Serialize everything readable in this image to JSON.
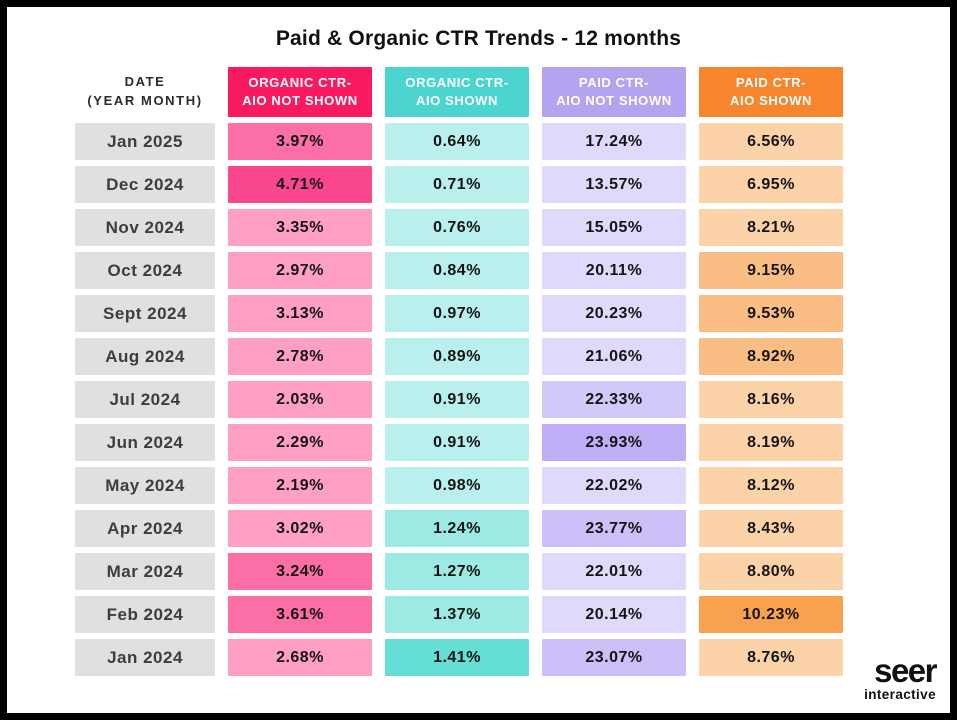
{
  "title": "Paid & Organic CTR Trends - 12 months",
  "date_header": {
    "line1": "DATE",
    "line2": "(YEAR MONTH)"
  },
  "columns": [
    {
      "line1": "ORGANIC CTR-",
      "line2": "AIO NOT SHOWN",
      "header_bg": "#F91A62",
      "shades": {
        "light": "#FF9FC5",
        "mlight": "#FF8FBB",
        "medium": "#FC6FA6",
        "dark": "#F9468C"
      }
    },
    {
      "line1": "ORGANIC CTR-",
      "line2": "AIO SHOWN",
      "header_bg": "#4BD5CE",
      "shades": {
        "light": "#B9F0ED",
        "mlight": "#ACEDE9",
        "medium": "#9DEAE5",
        "dark": "#65DED6"
      }
    },
    {
      "line1": "PAID CTR-",
      "line2": "AIO NOT SHOWN",
      "header_bg": "#B6A3F0",
      "shades": {
        "light": "#DFDAFB",
        "mlight": "#D3C9F9",
        "medium": "#CDC0F8",
        "dark": "#BFAEF5"
      }
    },
    {
      "line1": "PAID CTR-",
      "line2": "AIO SHOWN",
      "header_bg": "#F6852D",
      "shades": {
        "light": "#FCD2A9",
        "mlight": "#FBC896",
        "medium": "#FABE85",
        "dark": "#F8A250"
      }
    }
  ],
  "rows": [
    {
      "date": "Jan 2025",
      "values": [
        "3.97%",
        "0.64%",
        "17.24%",
        "6.56%"
      ],
      "shades": [
        "medium",
        "light",
        "light",
        "light"
      ]
    },
    {
      "date": "Dec 2024",
      "values": [
        "4.71%",
        "0.71%",
        "13.57%",
        "6.95%"
      ],
      "shades": [
        "dark",
        "light",
        "light",
        "light"
      ]
    },
    {
      "date": "Nov 2024",
      "values": [
        "3.35%",
        "0.76%",
        "15.05%",
        "8.21%"
      ],
      "shades": [
        "light",
        "light",
        "light",
        "light"
      ]
    },
    {
      "date": "Oct 2024",
      "values": [
        "2.97%",
        "0.84%",
        "20.11%",
        "9.15%"
      ],
      "shades": [
        "light",
        "light",
        "light",
        "medium"
      ]
    },
    {
      "date": "Sept 2024",
      "values": [
        "3.13%",
        "0.97%",
        "20.23%",
        "9.53%"
      ],
      "shades": [
        "light",
        "light",
        "light",
        "medium"
      ]
    },
    {
      "date": "Aug 2024",
      "values": [
        "2.78%",
        "0.89%",
        "21.06%",
        "8.92%"
      ],
      "shades": [
        "light",
        "light",
        "light",
        "medium"
      ]
    },
    {
      "date": "Jul 2024",
      "values": [
        "2.03%",
        "0.91%",
        "22.33%",
        "8.16%"
      ],
      "shades": [
        "light",
        "light",
        "mlight",
        "light"
      ]
    },
    {
      "date": "Jun 2024",
      "values": [
        "2.29%",
        "0.91%",
        "23.93%",
        "8.19%"
      ],
      "shades": [
        "light",
        "light",
        "dark",
        "light"
      ]
    },
    {
      "date": "May 2024",
      "values": [
        "2.19%",
        "0.98%",
        "22.02%",
        "8.12%"
      ],
      "shades": [
        "light",
        "light",
        "light",
        "light"
      ]
    },
    {
      "date": "Apr 2024",
      "values": [
        "3.02%",
        "1.24%",
        "23.77%",
        "8.43%"
      ],
      "shades": [
        "light",
        "medium",
        "medium",
        "light"
      ]
    },
    {
      "date": "Mar 2024",
      "values": [
        "3.24%",
        "1.27%",
        "22.01%",
        "8.80%"
      ],
      "shades": [
        "medium",
        "medium",
        "light",
        "light"
      ]
    },
    {
      "date": "Feb 2024",
      "values": [
        "3.61%",
        "1.37%",
        "20.14%",
        "10.23%"
      ],
      "shades": [
        "medium",
        "medium",
        "light",
        "dark"
      ]
    },
    {
      "date": "Jan 2024",
      "values": [
        "2.68%",
        "1.41%",
        "23.07%",
        "8.76%"
      ],
      "shades": [
        "light",
        "dark",
        "medium",
        "light"
      ]
    }
  ],
  "logo": {
    "main": "seer",
    "sub": "interactive"
  },
  "colors": {
    "frame_border": "#000000",
    "background": "#ffffff",
    "date_cell_bg": "#e1e0e0",
    "value_text": "#141414"
  },
  "chart_data": {
    "type": "heatmap",
    "title": "Paid & Organic CTR Trends - 12 months",
    "categories": [
      "Jan 2025",
      "Dec 2024",
      "Nov 2024",
      "Oct 2024",
      "Sept 2024",
      "Aug 2024",
      "Jul 2024",
      "Jun 2024",
      "May 2024",
      "Apr 2024",
      "Mar 2024",
      "Feb 2024",
      "Jan 2024"
    ],
    "series": [
      {
        "name": "Organic CTR - AIO Not Shown",
        "values": [
          3.97,
          4.71,
          3.35,
          2.97,
          3.13,
          2.78,
          2.03,
          2.29,
          2.19,
          3.02,
          3.24,
          3.61,
          2.68
        ]
      },
      {
        "name": "Organic CTR - AIO Shown",
        "values": [
          0.64,
          0.71,
          0.76,
          0.84,
          0.97,
          0.89,
          0.91,
          0.91,
          0.98,
          1.24,
          1.27,
          1.37,
          1.41
        ]
      },
      {
        "name": "Paid CTR - AIO Not Shown",
        "values": [
          17.24,
          13.57,
          15.05,
          20.11,
          20.23,
          21.06,
          22.33,
          23.93,
          22.02,
          23.77,
          22.01,
          20.14,
          23.07
        ]
      },
      {
        "name": "Paid CTR - AIO Shown",
        "values": [
          6.56,
          6.95,
          8.21,
          9.15,
          9.53,
          8.92,
          8.16,
          8.19,
          8.12,
          8.43,
          8.8,
          10.23,
          8.76
        ]
      }
    ],
    "unit": "%",
    "xlabel": "Date (Year Month)",
    "legend_position": "none",
    "grid": false
  }
}
